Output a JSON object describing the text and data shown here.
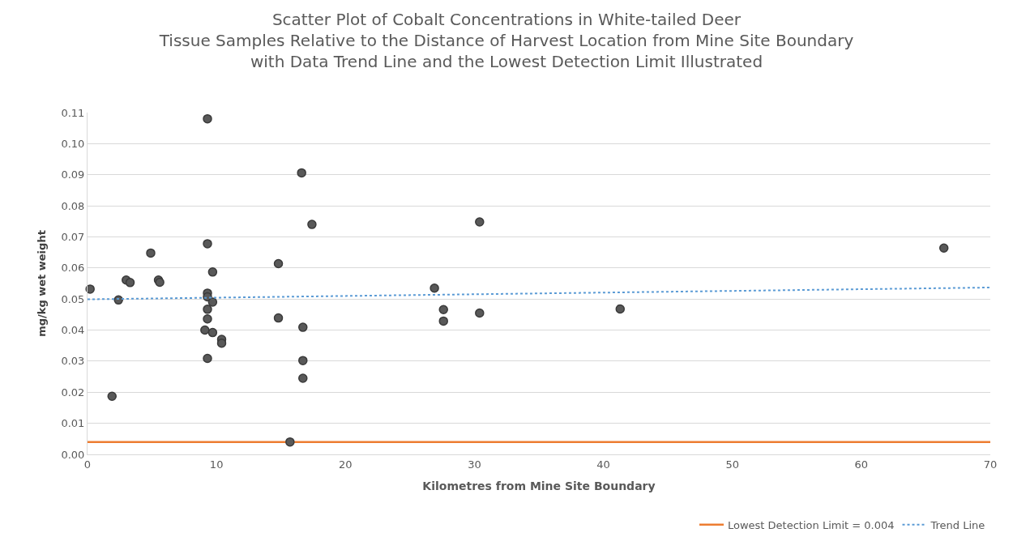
{
  "chart_data": {
    "type": "scatter",
    "title": "Scatter Plot of Cobalt Concentrations in White-tailed Deer\nTissue Samples Relative to the Distance of Harvest Location from Mine Site Boundary\nwith Data Trend Line and the Lowest Detection Limit Illustrated",
    "xlabel": "Kilometres from Mine Site Boundary",
    "ylabel": "mg/kg wet weight",
    "x": [
      9.3,
      16.6,
      17.4,
      9.3,
      4.9,
      14.8,
      9.7,
      3.0,
      3.3,
      5.5,
      5.6,
      0.2,
      2.4,
      9.3,
      9.3,
      9.7,
      9.3,
      9.3,
      9.1,
      9.7,
      10.4,
      10.4,
      14.8,
      16.7,
      9.3,
      16.7,
      16.7,
      1.9,
      15.7,
      26.9,
      27.6,
      27.6,
      30.4,
      30.4,
      41.3,
      66.4
    ],
    "series": [
      {
        "color": "#595959",
        "values": [
          0.108,
          0.0906,
          0.074,
          0.0678,
          0.0648,
          0.0614,
          0.0587,
          0.0561,
          0.0553,
          0.0561,
          0.0554,
          0.0532,
          0.0497,
          0.0519,
          0.0507,
          0.049,
          0.0467,
          0.0436,
          0.04,
          0.0392,
          0.037,
          0.0358,
          0.0439,
          0.0409,
          0.0309,
          0.0302,
          0.0245,
          0.0187,
          0.004,
          0.0535,
          0.0466,
          0.0429,
          0.0748,
          0.0455,
          0.0468,
          0.0664
        ]
      },
      {
        "type": "line",
        "name": "Trend Line",
        "color": "#5b9bd5",
        "line_style": "dotted",
        "marker": "none",
        "x": [
          0,
          70
        ],
        "values": [
          0.0499,
          0.0537
        ]
      }
    ],
    "ref_lines": [
      {
        "axis": "y",
        "value": 0.004,
        "label": "Lowest Detection Limit = 0.004",
        "color": "#ed7d31",
        "line_style": "solid"
      }
    ],
    "xlim": [
      0,
      70
    ],
    "xticks": [
      0,
      10,
      20,
      30,
      40,
      50,
      60,
      70
    ],
    "ylim": [
      0,
      0.11
    ],
    "yticks": [
      {
        "value": 0,
        "label": "0.00"
      },
      {
        "value": 0.01,
        "label": "0.01"
      },
      {
        "value": 0.02,
        "label": "0.02"
      },
      {
        "value": 0.03,
        "label": "0.03"
      },
      {
        "value": 0.04,
        "label": "0.04"
      },
      {
        "value": 0.05,
        "label": "0.05"
      },
      {
        "value": 0.06,
        "label": "0.06"
      },
      {
        "value": 0.07,
        "label": "0.07"
      },
      {
        "value": 0.08,
        "label": "0.08"
      },
      {
        "value": 0.09,
        "label": "0.09"
      },
      {
        "value": 0.1,
        "label": "0.10"
      },
      {
        "value": 0.11,
        "label": "0.11"
      }
    ],
    "grid": "y",
    "legend": "bottom right",
    "marker": "circle"
  }
}
